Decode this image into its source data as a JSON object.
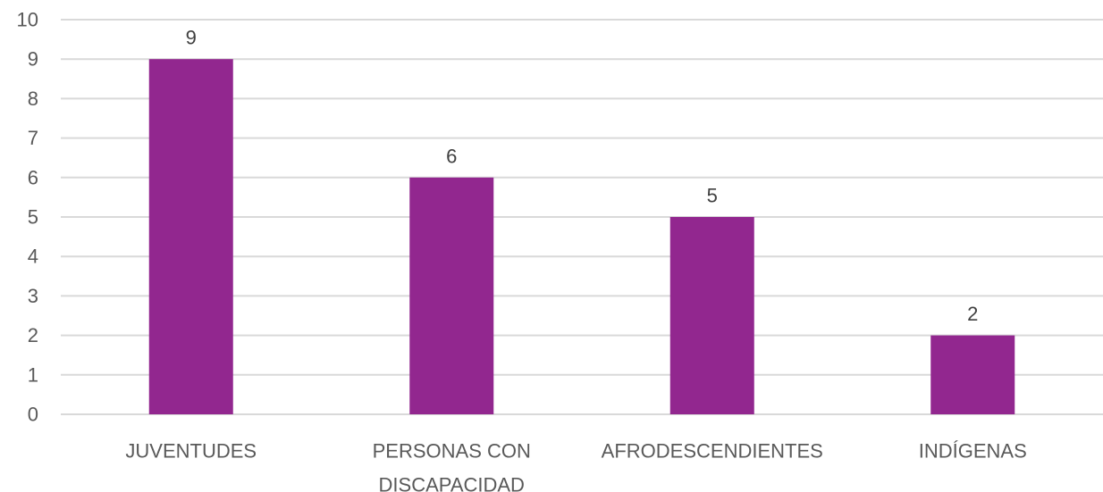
{
  "chart_data": {
    "type": "bar",
    "title": "",
    "xlabel": "",
    "ylabel": "",
    "categories": [
      [
        "JUVENTUDES"
      ],
      [
        "PERSONAS CON",
        "DISCAPACIDAD"
      ],
      [
        "AFRODESCENDIENTES"
      ],
      [
        "INDÍGENAS"
      ]
    ],
    "values": [
      9,
      6,
      5,
      2
    ],
    "data_labels": [
      "9",
      "6",
      "5",
      "2"
    ],
    "ylim": [
      0,
      10
    ],
    "yticks": [
      0,
      1,
      2,
      3,
      4,
      5,
      6,
      7,
      8,
      9,
      10
    ],
    "ytick_labels": [
      "0",
      "1",
      "2",
      "3",
      "4",
      "5",
      "6",
      "7",
      "8",
      "9",
      "10"
    ],
    "grid": true,
    "legend": "none",
    "colors": {
      "bar": "#92278f",
      "grid": "#d9d9d9",
      "text": "#595959"
    }
  }
}
